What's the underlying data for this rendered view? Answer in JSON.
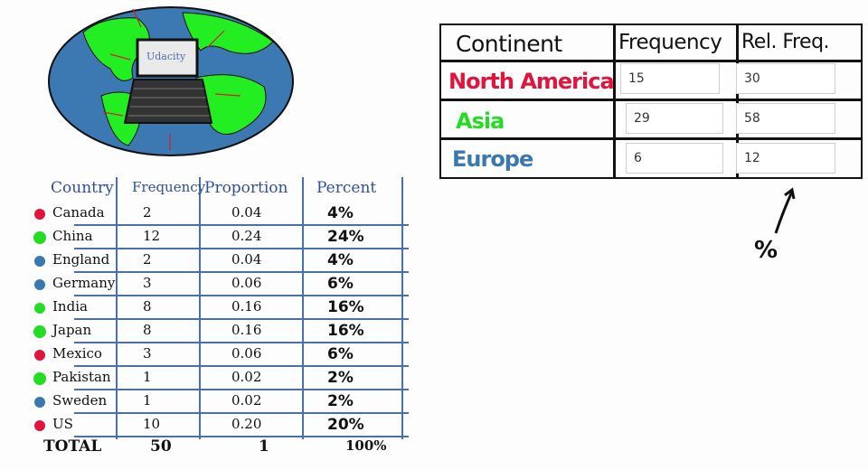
{
  "globe": {
    "laptop_label": "Udacity"
  },
  "country_table": {
    "headers": {
      "country": "Country",
      "frequency": "Frequency",
      "proportion": "Proportion",
      "percent": "Percent"
    },
    "rows": [
      {
        "country": "Canada",
        "frequency": "2",
        "proportion": "0.04",
        "percent": "4%",
        "dot_color": "#e0143c"
      },
      {
        "country": "China",
        "frequency": "12",
        "proportion": "0.24",
        "percent": "24%",
        "dot_color": "#22dd22"
      },
      {
        "country": "England",
        "frequency": "2",
        "proportion": "0.04",
        "percent": "4%",
        "dot_color": "#3a78b0"
      },
      {
        "country": "Germany",
        "frequency": "3",
        "proportion": "0.06",
        "percent": "6%",
        "dot_color": "#3a78b0"
      },
      {
        "country": "India",
        "frequency": "8",
        "proportion": "0.16",
        "percent": "16%",
        "dot_color": "#22dd22"
      },
      {
        "country": "Japan",
        "frequency": "8",
        "proportion": "0.16",
        "percent": "16%",
        "dot_color": "#22dd22"
      },
      {
        "country": "Mexico",
        "frequency": "3",
        "proportion": "0.06",
        "percent": "6%",
        "dot_color": "#e0143c"
      },
      {
        "country": "Pakistan",
        "frequency": "1",
        "proportion": "0.02",
        "percent": "2%",
        "dot_color": "#22dd22"
      },
      {
        "country": "Sweden",
        "frequency": "1",
        "proportion": "0.02",
        "percent": "2%",
        "dot_color": "#3a78b0"
      },
      {
        "country": "US",
        "frequency": "10",
        "proportion": "0.20",
        "percent": "20%",
        "dot_color": "#e0143c"
      }
    ],
    "total": {
      "label": "TOTAL",
      "frequency": "50",
      "proportion": "1",
      "percent": "100%"
    }
  },
  "continent_table": {
    "headers": {
      "continent": "Continent",
      "frequency": "Frequency",
      "rel_freq": "Rel. Freq."
    },
    "rows": [
      {
        "name": "North America",
        "color": "#e0143c",
        "frequency": "15",
        "rel_freq": "30"
      },
      {
        "name": "Asia",
        "color": "#22dd22",
        "frequency": "29",
        "rel_freq": "58"
      },
      {
        "name": "Europe",
        "color": "#3a78b0",
        "frequency": "6",
        "rel_freq": "12"
      }
    ]
  },
  "annotation": {
    "percent_sign": "%"
  }
}
